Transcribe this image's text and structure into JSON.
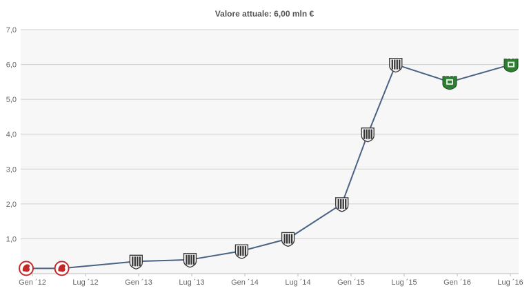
{
  "chart_data": {
    "type": "line",
    "title": "Valore attuale: 6,00 mln €",
    "xlabel": "",
    "ylabel": "",
    "ylim": [
      0,
      7
    ],
    "y_ticks": [
      "1,0",
      "2,0",
      "3,0",
      "4,0",
      "5,0",
      "6,0",
      "7,0"
    ],
    "y_tick_values": [
      1,
      2,
      3,
      4,
      5,
      6,
      7
    ],
    "x_ticks": [
      "Gen ´12",
      "Lug ´12",
      "Gen ´13",
      "Lug ´13",
      "Gen ´14",
      "Lug ´14",
      "Gen ´15",
      "Lug ´15",
      "Gen ´16",
      "Lug ´16"
    ],
    "grid": true,
    "series": [
      {
        "points": [
          {
            "x": 2012.0,
            "y": 0.15,
            "club_icon": "bari-crest-icon"
          },
          {
            "x": 2012.33,
            "y": 0.15,
            "club_icon": "bari-crest-icon"
          },
          {
            "x": 2013.02,
            "y": 0.35,
            "club_icon": "cesena-crest-icon"
          },
          {
            "x": 2013.52,
            "y": 0.4,
            "club_icon": "cesena-crest-icon"
          },
          {
            "x": 2014.0,
            "y": 0.65,
            "club_icon": "cesena-crest-icon"
          },
          {
            "x": 2014.43,
            "y": 1.0,
            "club_icon": "cesena-crest-icon"
          },
          {
            "x": 2014.93,
            "y": 2.0,
            "club_icon": "cesena-crest-icon"
          },
          {
            "x": 2015.17,
            "y": 4.0,
            "club_icon": "cesena-crest-icon"
          },
          {
            "x": 2015.43,
            "y": 6.0,
            "club_icon": "cesena-crest-icon"
          },
          {
            "x": 2015.93,
            "y": 5.5,
            "club_icon": "sassuolo-crest-icon"
          },
          {
            "x": 2016.5,
            "y": 6.0,
            "club_icon": "sassuolo-crest-icon"
          }
        ]
      }
    ],
    "colors": {
      "line": "#4a6283",
      "bari_red": "#c62828",
      "cesena_black": "#333333",
      "sassuolo_green": "#2e7d32"
    }
  }
}
